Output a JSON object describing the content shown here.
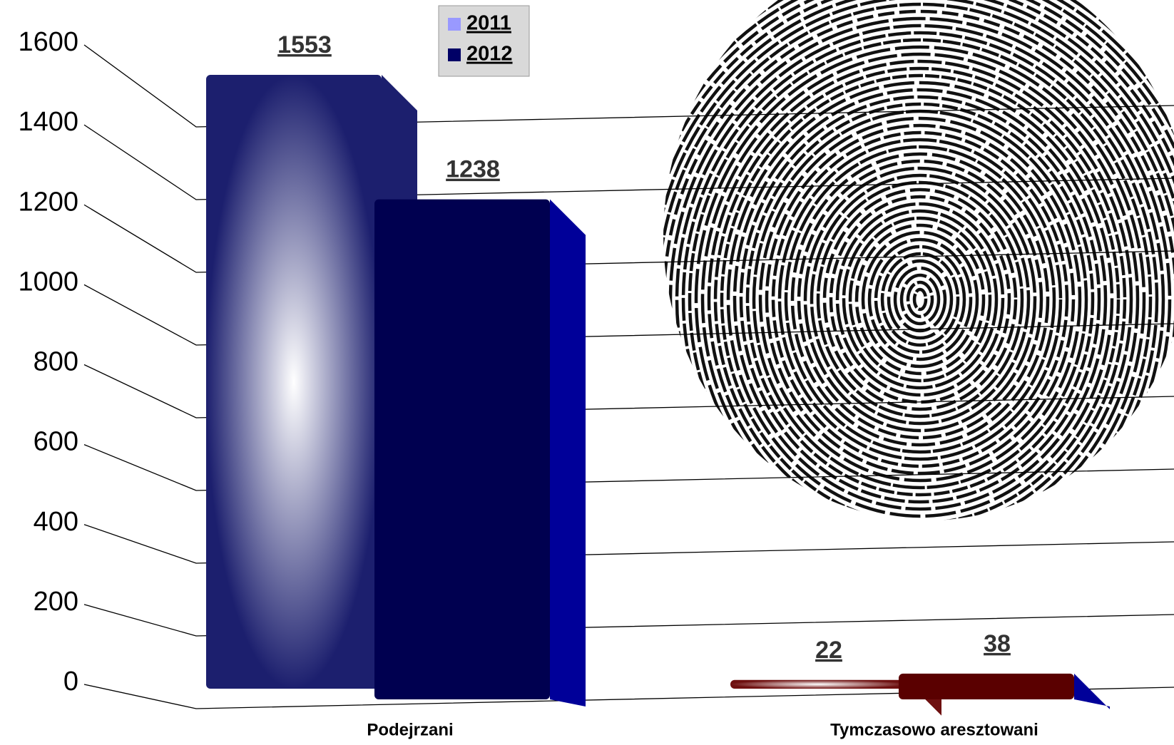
{
  "chart_data": {
    "type": "bar3d",
    "categories": [
      "Podejrzani",
      "Tymczasowo aresztowani"
    ],
    "series": [
      {
        "name": "2011",
        "color": "#9999ff",
        "bar_colors": [
          "#1c1f6e",
          "#6e1010"
        ],
        "values": [
          1553,
          22
        ]
      },
      {
        "name": "2012",
        "color": "#000066",
        "bar_colors": [
          "#000050",
          "#5a0000"
        ],
        "values": [
          1238,
          38
        ]
      }
    ],
    "ylim": [
      0,
      1600
    ],
    "yticks": [
      0,
      200,
      400,
      600,
      800,
      1000,
      1200,
      1400,
      1600
    ],
    "grid": true
  }
}
